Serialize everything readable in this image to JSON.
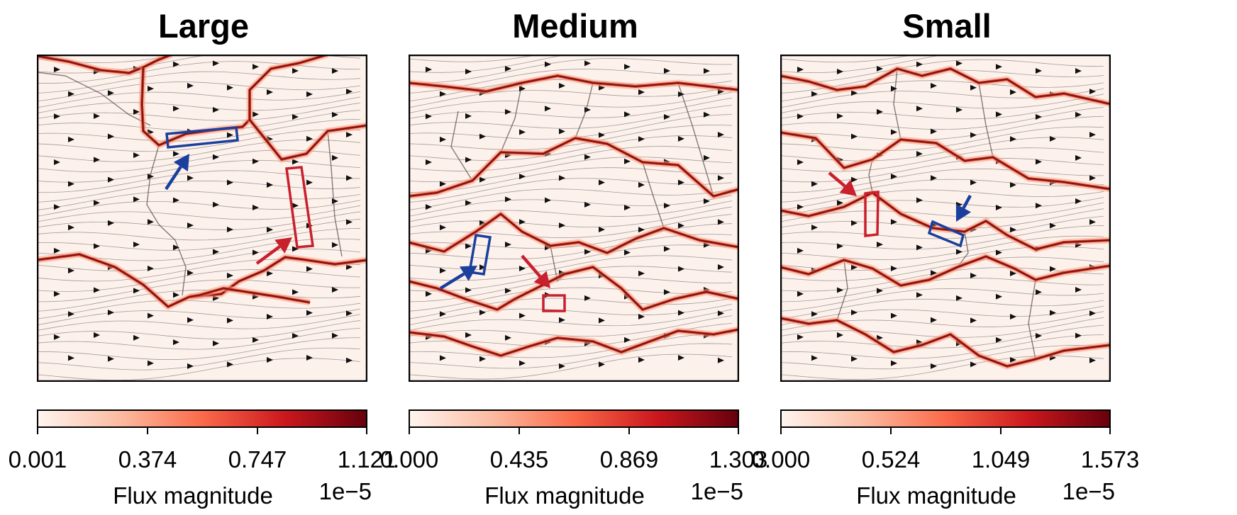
{
  "chart_data": [
    {
      "type": "heatmap",
      "title": "Large",
      "colorbar": {
        "label": "Flux magnitude",
        "multiplier": "1e−5",
        "ticks": [
          "0.001",
          "0.374",
          "0.747",
          "1.121"
        ],
        "range": [
          0.001,
          1.121
        ],
        "colormap": "Reds"
      },
      "annotations": [
        {
          "shape": "rectangle",
          "color": "#1a3f9c"
        },
        {
          "shape": "rectangle",
          "color": "#c8202c"
        },
        {
          "shape": "arrow",
          "color": "#1a3f9c"
        },
        {
          "shape": "arrow",
          "color": "#c8202c"
        }
      ]
    },
    {
      "type": "heatmap",
      "title": "Medium",
      "colorbar": {
        "label": "Flux magnitude",
        "multiplier": "1e−5",
        "ticks": [
          "0.000",
          "0.435",
          "0.869",
          "1.303"
        ],
        "range": [
          0.0,
          1.303
        ],
        "colormap": "Reds"
      },
      "annotations": [
        {
          "shape": "rectangle",
          "color": "#1a3f9c"
        },
        {
          "shape": "rectangle",
          "color": "#c8202c"
        },
        {
          "shape": "arrow",
          "color": "#1a3f9c"
        },
        {
          "shape": "arrow",
          "color": "#c8202c"
        }
      ]
    },
    {
      "type": "heatmap",
      "title": "Small",
      "colorbar": {
        "label": "Flux magnitude",
        "multiplier": "1e−5",
        "ticks": [
          "0.000",
          "0.524",
          "1.049",
          "1.573"
        ],
        "range": [
          0.0,
          1.573
        ],
        "colormap": "Reds"
      },
      "annotations": [
        {
          "shape": "rectangle",
          "color": "#1a3f9c"
        },
        {
          "shape": "rectangle",
          "color": "#c8202c"
        },
        {
          "shape": "arrow",
          "color": "#1a3f9c"
        },
        {
          "shape": "arrow",
          "color": "#c8202c"
        }
      ]
    }
  ],
  "colors": {
    "background": "#fdf1ec",
    "boundary_dark": "#6b0d0d",
    "boundary_mid": "#d43a2a",
    "boundary_light": "#f6a083",
    "streamline": "#555555",
    "blue": "#1a3f9c",
    "red": "#c8202c"
  }
}
